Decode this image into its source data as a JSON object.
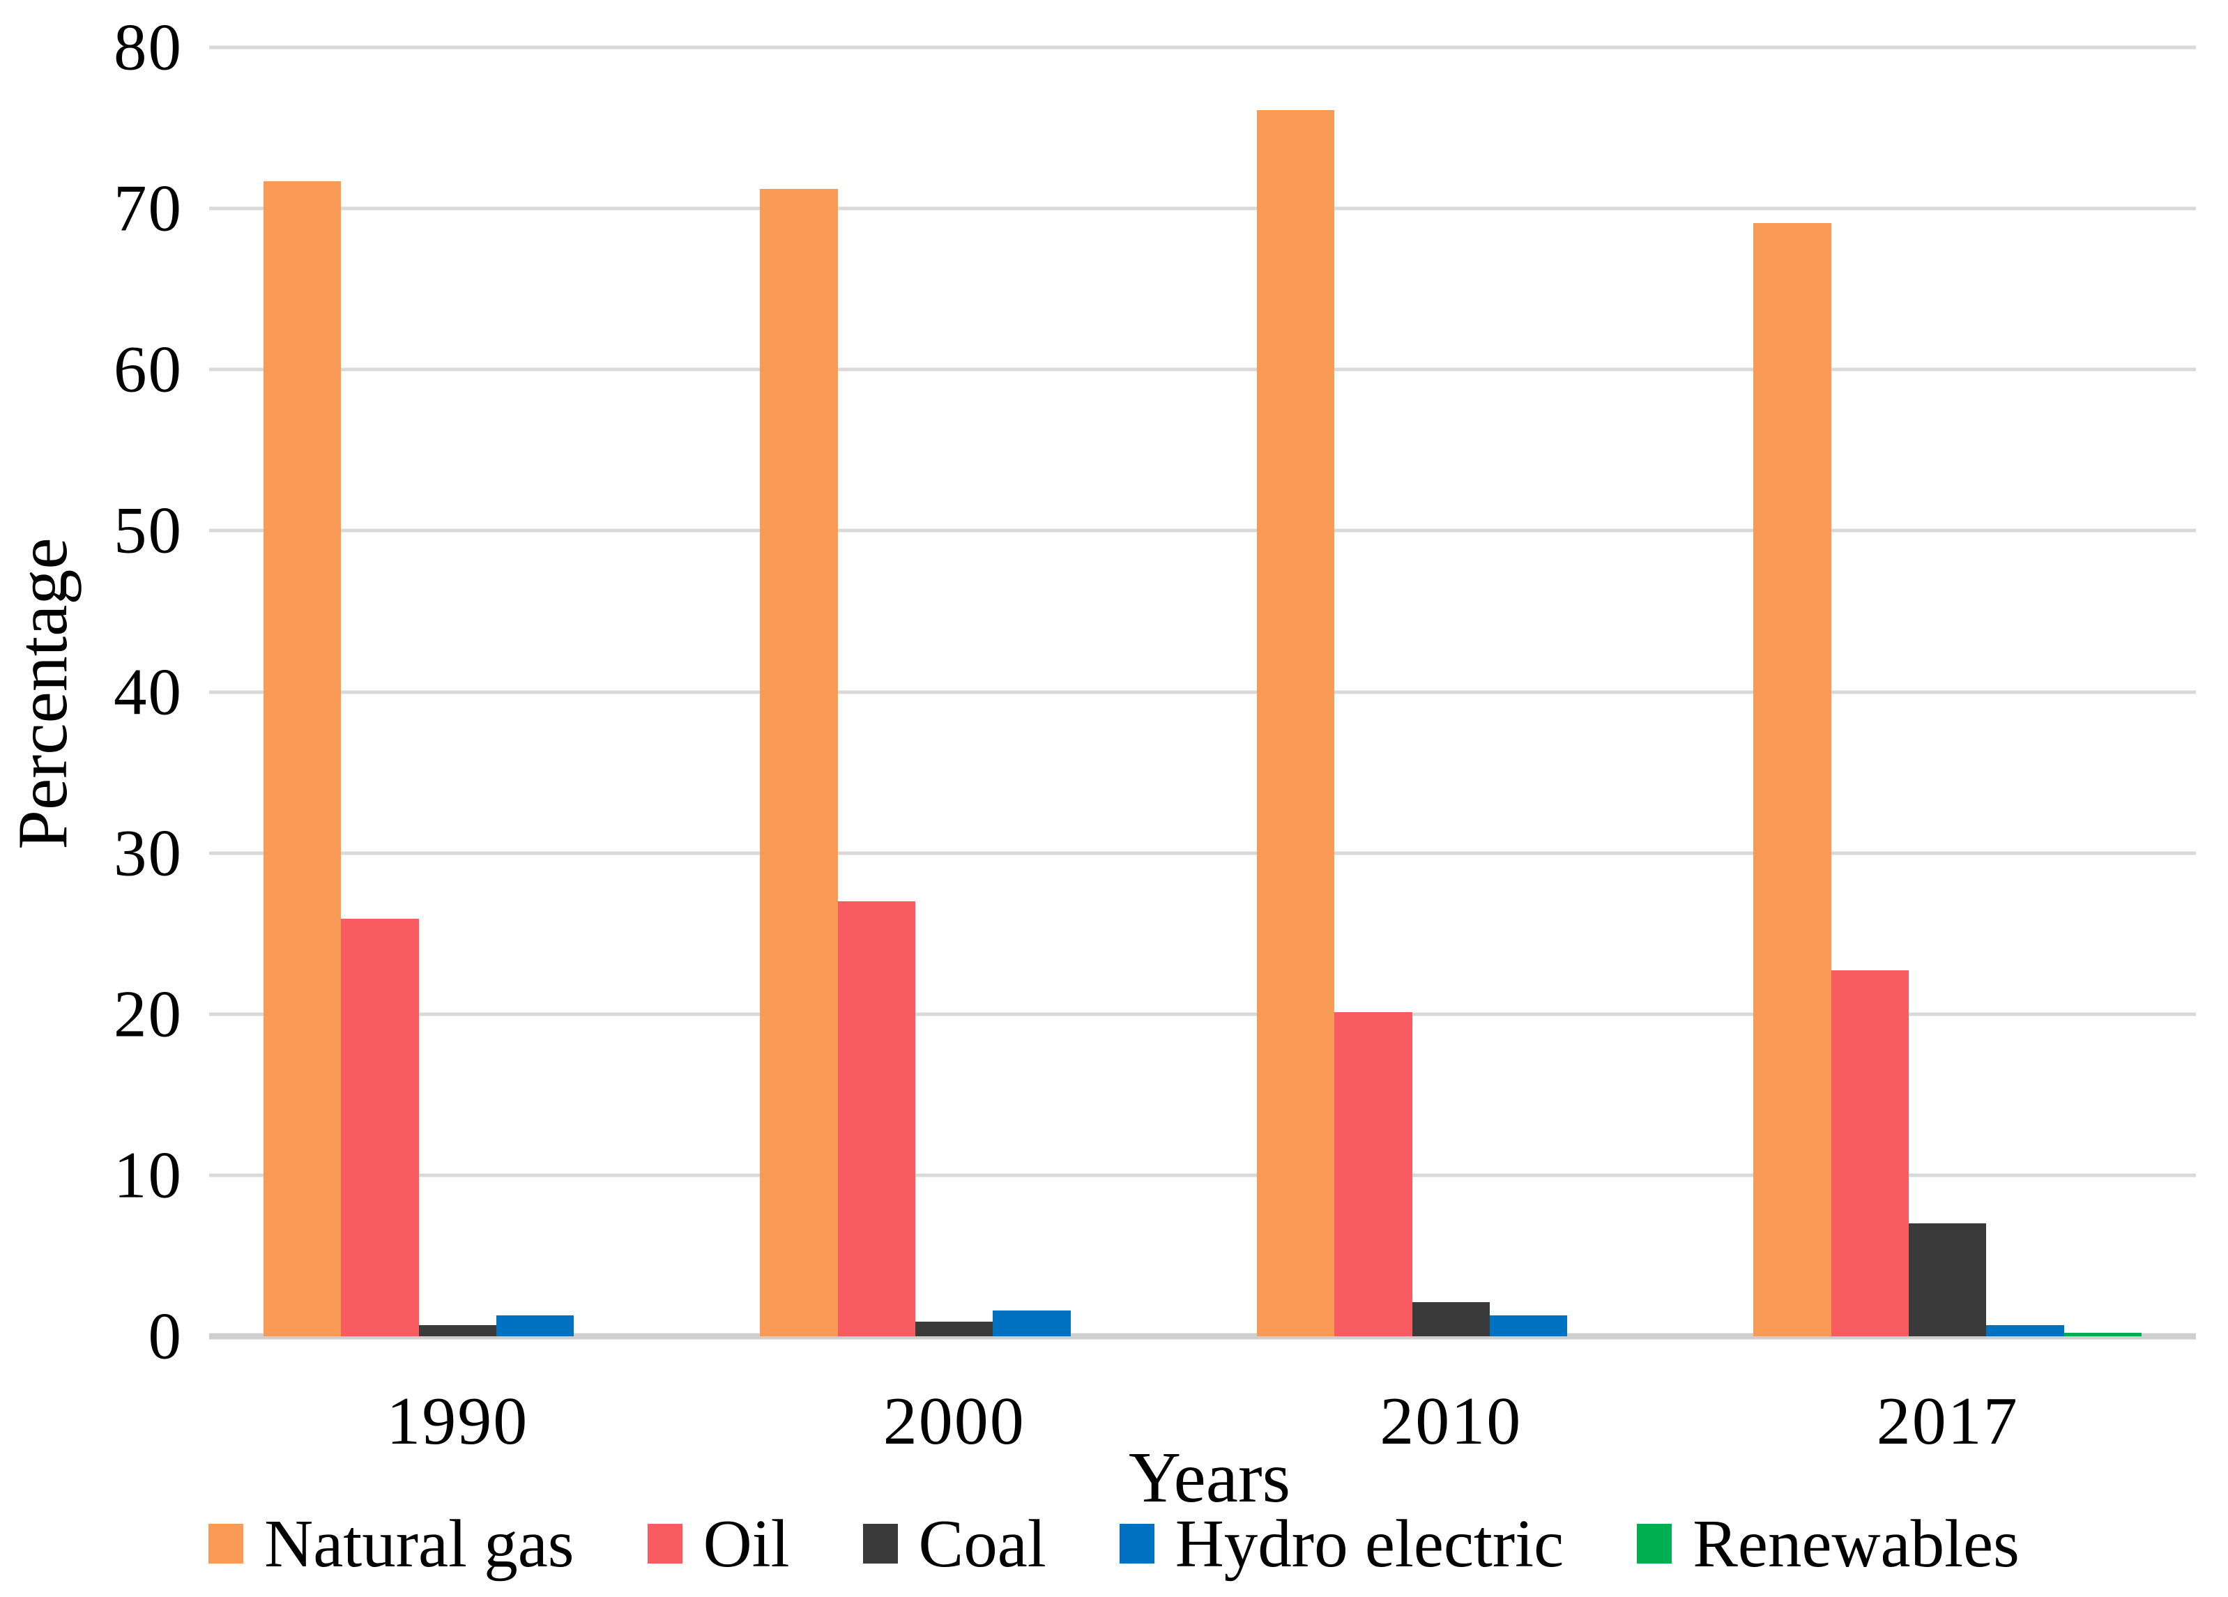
{
  "chart_data": {
    "type": "bar",
    "title": "",
    "xlabel": "Years",
    "ylabel": "Percentage",
    "ylim": [
      0,
      80
    ],
    "ytick_step": 10,
    "y_ticks": [
      "80",
      "70",
      "60",
      "50",
      "40",
      "30",
      "20",
      "10",
      "0"
    ],
    "grid": true,
    "legend_position": "bottom",
    "categories": [
      "1990",
      "2000",
      "2010",
      "2017"
    ],
    "series": [
      {
        "name": "Natural gas",
        "color": "#F99B57",
        "values": [
          71.7,
          71.2,
          76.1,
          69.1
        ]
      },
      {
        "name": "Oil",
        "color": "#F85C60",
        "values": [
          25.9,
          27.0,
          20.1,
          22.7
        ]
      },
      {
        "name": "Coal",
        "color": "#3A3A3A",
        "values": [
          0.7,
          0.9,
          2.1,
          7.0
        ]
      },
      {
        "name": "Hydro electric",
        "color": "#0070C0",
        "values": [
          1.3,
          1.6,
          1.3,
          0.7
        ]
      },
      {
        "name": "Renewables",
        "color": "#00B050",
        "values": [
          0.0,
          0.0,
          0.0,
          0.2
        ]
      }
    ],
    "colors": {
      "gridline": "#D9D9D9",
      "axis_line": "#CFCFCF",
      "text": "#000000",
      "background": "#FFFFFF"
    }
  }
}
